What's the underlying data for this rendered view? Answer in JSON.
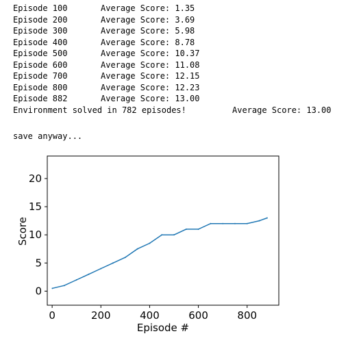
{
  "log": {
    "lines": [
      {
        "episode": "Episode 100",
        "score": "Average Score: 1.35"
      },
      {
        "episode": "Episode 200",
        "score": "Average Score: 3.69"
      },
      {
        "episode": "Episode 300",
        "score": "Average Score: 5.98"
      },
      {
        "episode": "Episode 400",
        "score": "Average Score: 8.78"
      },
      {
        "episode": "Episode 500",
        "score": "Average Score: 10.37"
      },
      {
        "episode": "Episode 600",
        "score": "Average Score: 11.08"
      },
      {
        "episode": "Episode 700",
        "score": "Average Score: 12.15"
      },
      {
        "episode": "Episode 800",
        "score": "Average Score: 12.23"
      },
      {
        "episode": "Episode 882",
        "score": "Average Score: 13.00"
      }
    ],
    "solved_message": "Environment solved in 782 episodes!",
    "solved_score": "Average Score: 13.00",
    "save_message": "save anyway..."
  },
  "chart_data": {
    "type": "line",
    "title": "",
    "xlabel": "Episode #",
    "ylabel": "Score",
    "xlim": [
      -20,
      930
    ],
    "ylim": [
      -2.5,
      24.0
    ],
    "xticks": [
      0,
      200,
      400,
      600,
      800
    ],
    "yticks": [
      0,
      5,
      10,
      15,
      20
    ],
    "grid": false,
    "color": "#1f77b4",
    "series": [
      {
        "x": [
          1,
          50,
          100,
          150,
          200,
          250,
          300,
          350,
          400,
          450,
          500,
          550,
          600,
          650,
          700,
          750,
          800,
          850,
          882
        ],
        "values": [
          0.5,
          1,
          2,
          3,
          4,
          5,
          6,
          7.5,
          8.5,
          10,
          10,
          11,
          11,
          12,
          12,
          12,
          12,
          12.5,
          13
        ]
      }
    ]
  }
}
